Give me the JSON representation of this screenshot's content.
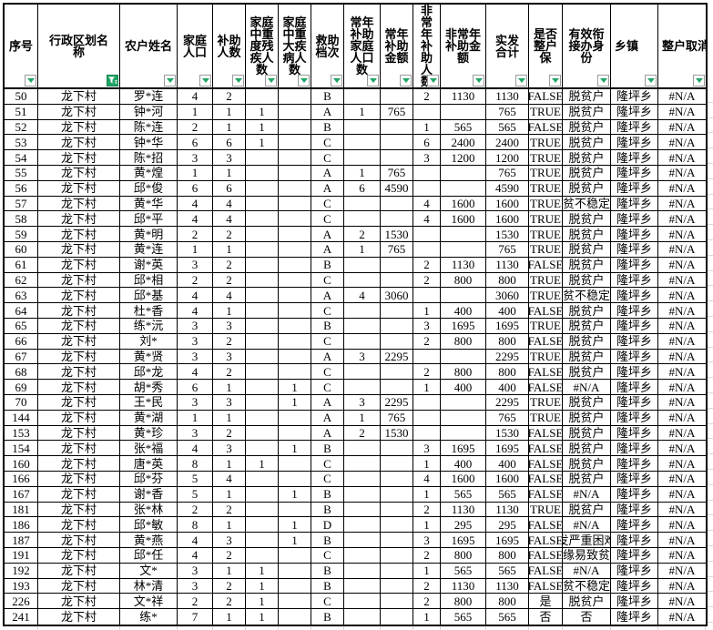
{
  "colors": {
    "table_border": "#000000",
    "outside_gridline": "#d8d8d8",
    "filter_green": "#21a567",
    "background": "#ffffff"
  },
  "sheet": {
    "columns": [
      {
        "key": "xuhao",
        "label": "序号",
        "filter": "dropdown"
      },
      {
        "key": "xingzhengquhua",
        "label": "行政区划名\n称",
        "filter": "active"
      },
      {
        "key": "nonghu-xingming",
        "label": "农户姓名",
        "filter": "dropdown"
      },
      {
        "key": "jiating-renkou",
        "label": "家庭\n人口",
        "filter": "dropdown"
      },
      {
        "key": "buzhu-renshu",
        "label": "补助\n人数",
        "filter": "dropdown"
      },
      {
        "key": "zhongdu-canji",
        "label": "家庭\n中重\n度残\n疾人\n数",
        "filter": "dropdown"
      },
      {
        "key": "zhongda-jibing",
        "label": "家庭\n中重\n大疾\n病人\n数",
        "filter": "dropdown"
      },
      {
        "key": "jiuzhu-dangci",
        "label": "救助\n档次",
        "filter": "dropdown"
      },
      {
        "key": "changnian-renkou",
        "label": "常年\n补助\n家庭\n人口\n数",
        "filter": "dropdown"
      },
      {
        "key": "changnian-jine",
        "label": "常年\n补助\n金额",
        "filter": "dropdown"
      },
      {
        "key": "feichangnian-renshu",
        "label": "非\n常\n年\n补\n助\n人\n数",
        "filter": "dropdown"
      },
      {
        "key": "feichangnian-jine",
        "label": "非常年\n补助金\n额",
        "filter": "dropdown"
      },
      {
        "key": "shifa-heji",
        "label": "实发\n合计",
        "filter": "dropdown"
      },
      {
        "key": "zhenghu-bao",
        "label": "是否\n整户\n保",
        "filter": "dropdown"
      },
      {
        "key": "youxiao-xianjie",
        "label": "有效衔\n接办身\n份",
        "filter": "dropdown"
      },
      {
        "key": "xiangzhen",
        "label": "乡镇",
        "align": "left",
        "filter": "dropdown"
      },
      {
        "key": "zhenghu-quxiao",
        "label": "整户取消",
        "align": "left",
        "filter": "dropdown"
      }
    ],
    "rows": [
      [
        "50",
        "龙下村",
        "罗*连",
        "4",
        "2",
        "",
        "",
        "B",
        "",
        "",
        "2",
        "1130",
        "1130",
        "FALSE",
        "脱贫户",
        "隆坪乡",
        "#N/A"
      ],
      [
        "51",
        "龙下村",
        "钟*河",
        "1",
        "1",
        "1",
        "",
        "A",
        "1",
        "765",
        "",
        "",
        "765",
        "TRUE",
        "脱贫户",
        "隆坪乡",
        "#N/A"
      ],
      [
        "52",
        "龙下村",
        "陈*连",
        "2",
        "1",
        "1",
        "",
        "B",
        "",
        "",
        "1",
        "565",
        "565",
        "FALSE",
        "脱贫户",
        "隆坪乡",
        "#N/A"
      ],
      [
        "53",
        "龙下村",
        "钟*华",
        "6",
        "6",
        "1",
        "",
        "C",
        "",
        "",
        "6",
        "2400",
        "2400",
        "TRUE",
        "脱贫户",
        "隆坪乡",
        "#N/A"
      ],
      [
        "54",
        "龙下村",
        "陈*招",
        "3",
        "3",
        "",
        "",
        "C",
        "",
        "",
        "3",
        "1200",
        "1200",
        "TRUE",
        "脱贫户",
        "隆坪乡",
        "#N/A"
      ],
      [
        "55",
        "龙下村",
        "黄*煌",
        "1",
        "1",
        "",
        "",
        "A",
        "1",
        "765",
        "",
        "",
        "765",
        "TRUE",
        "脱贫户",
        "隆坪乡",
        "#N/A"
      ],
      [
        "56",
        "龙下村",
        "邱*俊",
        "6",
        "6",
        "",
        "",
        "A",
        "6",
        "4590",
        "",
        "",
        "4590",
        "TRUE",
        "脱贫户",
        "隆坪乡",
        "#N/A"
      ],
      [
        "57",
        "龙下村",
        "黄*华",
        "4",
        "4",
        "",
        "",
        "C",
        "",
        "",
        "4",
        "1600",
        "1600",
        "TRUE",
        "脱贫不稳定户",
        "隆坪乡",
        "#N/A"
      ],
      [
        "58",
        "龙下村",
        "邱*平",
        "4",
        "4",
        "",
        "",
        "C",
        "",
        "",
        "4",
        "1600",
        "1600",
        "TRUE",
        "脱贫户",
        "隆坪乡",
        "#N/A"
      ],
      [
        "59",
        "龙下村",
        "黄*明",
        "2",
        "2",
        "",
        "",
        "A",
        "2",
        "1530",
        "",
        "",
        "1530",
        "TRUE",
        "脱贫户",
        "隆坪乡",
        "#N/A"
      ],
      [
        "60",
        "龙下村",
        "黄*连",
        "1",
        "1",
        "",
        "",
        "A",
        "1",
        "765",
        "",
        "",
        "765",
        "TRUE",
        "脱贫户",
        "隆坪乡",
        "#N/A"
      ],
      [
        "61",
        "龙下村",
        "谢*英",
        "3",
        "2",
        "",
        "",
        "B",
        "",
        "",
        "2",
        "1130",
        "1130",
        "FALSE",
        "脱贫户",
        "隆坪乡",
        "#N/A"
      ],
      [
        "62",
        "龙下村",
        "邱*相",
        "2",
        "2",
        "",
        "",
        "C",
        "",
        "",
        "2",
        "800",
        "800",
        "TRUE",
        "脱贫户",
        "隆坪乡",
        "#N/A"
      ],
      [
        "63",
        "龙下村",
        "邱*基",
        "4",
        "4",
        "",
        "",
        "A",
        "4",
        "3060",
        "",
        "",
        "3060",
        "TRUE",
        "脱贫不稳定户",
        "隆坪乡",
        "#N/A"
      ],
      [
        "64",
        "龙下村",
        "杜*香",
        "4",
        "1",
        "",
        "",
        "C",
        "",
        "",
        "1",
        "400",
        "400",
        "FALSE",
        "脱贫户",
        "隆坪乡",
        "#N/A"
      ],
      [
        "65",
        "龙下村",
        "练*沅",
        "3",
        "3",
        "",
        "",
        "B",
        "",
        "",
        "3",
        "1695",
        "1695",
        "TRUE",
        "脱贫户",
        "隆坪乡",
        "#N/A"
      ],
      [
        "66",
        "龙下村",
        "刘*",
        "3",
        "2",
        "",
        "",
        "C",
        "",
        "",
        "2",
        "800",
        "800",
        "FALSE",
        "脱贫户",
        "隆坪乡",
        "#N/A"
      ],
      [
        "67",
        "龙下村",
        "黄*贤",
        "3",
        "3",
        "",
        "",
        "A",
        "3",
        "2295",
        "",
        "",
        "2295",
        "TRUE",
        "脱贫户",
        "隆坪乡",
        "#N/A"
      ],
      [
        "68",
        "龙下村",
        "邱*龙",
        "4",
        "2",
        "",
        "",
        "C",
        "",
        "",
        "2",
        "800",
        "800",
        "FALSE",
        "脱贫户",
        "隆坪乡",
        "#N/A"
      ],
      [
        "69",
        "龙下村",
        "胡*秀",
        "6",
        "1",
        "",
        "1",
        "C",
        "",
        "",
        "1",
        "400",
        "400",
        "FALSE",
        "#N/A",
        "隆坪乡",
        "#N/A"
      ],
      [
        "70",
        "龙下村",
        "王*民",
        "3",
        "3",
        "",
        "1",
        "A",
        "3",
        "2295",
        "",
        "",
        "2295",
        "TRUE",
        "脱贫户",
        "隆坪乡",
        "#N/A"
      ],
      [
        "144",
        "龙下村",
        "黄*湖",
        "1",
        "1",
        "",
        "",
        "A",
        "1",
        "765",
        "",
        "",
        "765",
        "TRUE",
        "脱贫户",
        "隆坪乡",
        "#N/A"
      ],
      [
        "153",
        "龙下村",
        "黄*珍",
        "3",
        "2",
        "",
        "",
        "A",
        "2",
        "1530",
        "",
        "",
        "1530",
        "FALSE",
        "脱贫户",
        "隆坪乡",
        "#N/A"
      ],
      [
        "154",
        "龙下村",
        "张*福",
        "4",
        "3",
        "",
        "1",
        "B",
        "",
        "",
        "3",
        "1695",
        "1695",
        "FALSE",
        "脱贫户",
        "隆坪乡",
        "#N/A"
      ],
      [
        "160",
        "龙下村",
        "唐*英",
        "8",
        "1",
        "1",
        "",
        "C",
        "",
        "",
        "1",
        "400",
        "400",
        "FALSE",
        "脱贫户",
        "隆坪乡",
        "#N/A"
      ],
      [
        "166",
        "龙下村",
        "邱*芬",
        "5",
        "4",
        "",
        "",
        "C",
        "",
        "",
        "4",
        "1600",
        "1600",
        "FALSE",
        "脱贫户",
        "隆坪乡",
        "#N/A"
      ],
      [
        "167",
        "龙下村",
        "谢*香",
        "5",
        "1",
        "",
        "1",
        "B",
        "",
        "",
        "1",
        "565",
        "565",
        "FALSE",
        "#N/A",
        "隆坪乡",
        "#N/A"
      ],
      [
        "181",
        "龙下村",
        "张*林",
        "2",
        "2",
        "",
        "",
        "B",
        "",
        "",
        "2",
        "1130",
        "1130",
        "TRUE",
        "脱贫户",
        "隆坪乡",
        "#N/A"
      ],
      [
        "186",
        "龙下村",
        "邱*敏",
        "8",
        "1",
        "",
        "1",
        "D",
        "",
        "",
        "1",
        "295",
        "295",
        "FALSE",
        "#N/A",
        "隆坪乡",
        "#N/A"
      ],
      [
        "187",
        "龙下村",
        "黄*燕",
        "4",
        "3",
        "",
        "1",
        "B",
        "",
        "",
        "3",
        "1695",
        "1695",
        "FALSE",
        "突发严重困难户",
        "隆坪乡",
        "#N/A"
      ],
      [
        "191",
        "龙下村",
        "邱*任",
        "4",
        "2",
        "",
        "",
        "C",
        "",
        "",
        "2",
        "800",
        "800",
        "FALSE",
        "边缘易致贫户",
        "隆坪乡",
        "#N/A"
      ],
      [
        "192",
        "龙下村",
        "文*",
        "3",
        "1",
        "1",
        "",
        "B",
        "",
        "",
        "1",
        "565",
        "565",
        "FALSE",
        "#N/A",
        "隆坪乡",
        "#N/A"
      ],
      [
        "193",
        "龙下村",
        "林*清",
        "3",
        "2",
        "1",
        "",
        "B",
        "",
        "",
        "2",
        "1130",
        "1130",
        "FALSE",
        "脱贫不稳定户",
        "隆坪乡",
        "#N/A"
      ],
      [
        "226",
        "龙下村",
        "文*祥",
        "2",
        "2",
        "1",
        "",
        "C",
        "",
        "",
        "2",
        "800",
        "800",
        "是",
        "脱贫户",
        "隆坪乡",
        "#N/A"
      ],
      [
        "241",
        "龙下村",
        "练*",
        "7",
        "1",
        "1",
        "",
        "B",
        "",
        "",
        "1",
        "565",
        "565",
        "否",
        "否",
        "隆坪乡",
        "#N/A"
      ]
    ]
  }
}
